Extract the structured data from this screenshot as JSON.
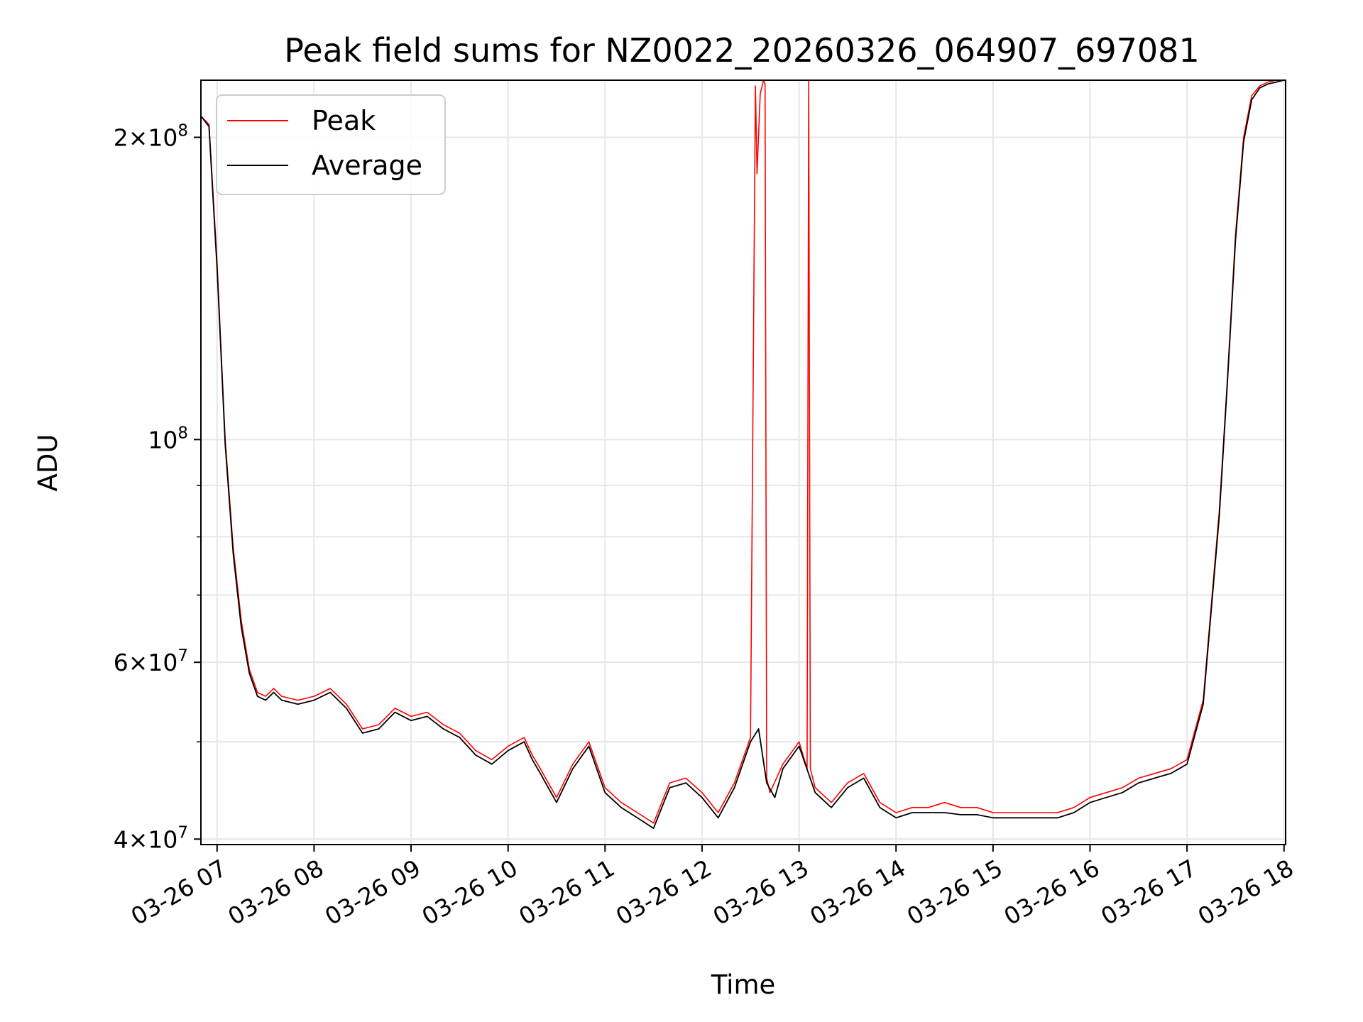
{
  "chart_data": {
    "type": "line",
    "title": "Peak field sums for NZ0022_20260326_064907_697081",
    "xlabel": "Time",
    "ylabel": "ADU",
    "yscale": "log",
    "ylim": [
      39500000,
      228000000
    ],
    "xlim": [
      "03-26 06:50",
      "03-26 18:01"
    ],
    "grid": true,
    "legend_position": "upper-left",
    "x_ticks": [
      "03-26 07",
      "03-26 08",
      "03-26 09",
      "03-26 10",
      "03-26 11",
      "03-26 12",
      "03-26 13",
      "03-26 14",
      "03-26 15",
      "03-26 16",
      "03-26 17",
      "03-26 18"
    ],
    "y_ticks": [
      {
        "value": 40000000,
        "mantissa": "4",
        "exp": "7"
      },
      {
        "value": 60000000,
        "mantissa": "6",
        "exp": "7"
      },
      {
        "value": 100000000,
        "mantissa": "",
        "exp": "8"
      },
      {
        "value": 200000000,
        "mantissa": "2",
        "exp": "8"
      }
    ],
    "y_minor_ticks": [
      50000000,
      70000000,
      80000000,
      90000000
    ],
    "series": [
      {
        "name": "Peak",
        "color": "#ff0000",
        "x": [
          "06:50",
          "06:55",
          "07:00",
          "07:05",
          "07:10",
          "07:15",
          "07:20",
          "07:25",
          "07:30",
          "07:35",
          "07:40",
          "07:50",
          "08:00",
          "08:10",
          "08:20",
          "08:30",
          "08:40",
          "08:50",
          "09:00",
          "09:10",
          "09:20",
          "09:30",
          "09:40",
          "09:50",
          "10:00",
          "10:10",
          "10:15",
          "10:20",
          "10:30",
          "10:40",
          "10:50",
          "11:00",
          "11:10",
          "11:20",
          "11:30",
          "11:40",
          "11:50",
          "12:00",
          "12:10",
          "12:20",
          "12:30",
          "12:33",
          "12:34",
          "12:36",
          "12:38",
          "12:39",
          "12:40",
          "12:42",
          "12:50",
          "13:00",
          "13:05",
          "13:06",
          "13:07",
          "13:10",
          "13:20",
          "13:30",
          "13:40",
          "13:50",
          "14:00",
          "14:10",
          "14:20",
          "14:30",
          "14:40",
          "14:50",
          "15:00",
          "15:10",
          "15:20",
          "15:30",
          "15:40",
          "15:50",
          "16:00",
          "16:10",
          "16:20",
          "16:30",
          "16:40",
          "16:50",
          "17:00",
          "17:10",
          "17:20",
          "17:25",
          "17:30",
          "17:35",
          "17:40",
          "17:45",
          "17:50",
          "17:55",
          "18:00"
        ],
        "y": [
          210000000,
          206000000,
          150000000,
          100000000,
          78000000,
          66000000,
          59000000,
          56000000,
          55500000,
          56500000,
          55500000,
          55000000,
          55500000,
          56500000,
          54500000,
          51500000,
          52000000,
          54000000,
          53000000,
          53500000,
          52000000,
          51000000,
          49000000,
          48000000,
          49500000,
          50500000,
          48500000,
          47000000,
          44000000,
          47500000,
          50000000,
          45000000,
          43500000,
          42500000,
          41500000,
          45500000,
          46000000,
          44500000,
          42500000,
          45500000,
          50500000,
          225000000,
          184000000,
          221000000,
          228000000,
          226000000,
          46000000,
          44500000,
          47500000,
          50000000,
          47000000,
          228000000,
          47000000,
          45000000,
          43500000,
          45500000,
          46500000,
          43500000,
          42500000,
          43000000,
          43000000,
          43500000,
          43000000,
          43000000,
          42500000,
          42500000,
          42500000,
          42500000,
          42500000,
          43000000,
          44000000,
          44500000,
          45000000,
          46000000,
          46500000,
          47000000,
          48000000,
          55000000,
          85000000,
          115000000,
          160000000,
          200000000,
          220000000,
          225000000,
          227000000,
          228000000,
          228000000
        ]
      },
      {
        "name": "Average",
        "color": "#000000",
        "x": [
          "06:50",
          "06:55",
          "07:00",
          "07:05",
          "07:10",
          "07:15",
          "07:20",
          "07:25",
          "07:30",
          "07:35",
          "07:40",
          "07:50",
          "08:00",
          "08:10",
          "08:20",
          "08:30",
          "08:40",
          "08:50",
          "09:00",
          "09:10",
          "09:20",
          "09:30",
          "09:40",
          "09:50",
          "10:00",
          "10:10",
          "10:15",
          "10:20",
          "10:30",
          "10:40",
          "10:50",
          "11:00",
          "11:10",
          "11:20",
          "11:30",
          "11:40",
          "11:50",
          "12:00",
          "12:10",
          "12:20",
          "12:30",
          "12:35",
          "12:40",
          "12:45",
          "12:50",
          "13:00",
          "13:10",
          "13:20",
          "13:30",
          "13:40",
          "13:50",
          "14:00",
          "14:10",
          "14:20",
          "14:30",
          "14:40",
          "14:50",
          "15:00",
          "15:10",
          "15:20",
          "15:30",
          "15:40",
          "15:50",
          "16:00",
          "16:10",
          "16:20",
          "16:30",
          "16:40",
          "16:50",
          "17:00",
          "17:10",
          "17:20",
          "17:25",
          "17:30",
          "17:35",
          "17:40",
          "17:45",
          "17:50",
          "17:55",
          "18:00"
        ],
        "y": [
          210000000,
          205000000,
          148000000,
          99000000,
          77000000,
          65000000,
          58500000,
          55500000,
          55000000,
          56000000,
          55000000,
          54500000,
          55000000,
          56000000,
          54000000,
          51000000,
          51500000,
          53500000,
          52500000,
          53000000,
          51500000,
          50500000,
          48500000,
          47500000,
          49000000,
          50000000,
          48000000,
          46500000,
          43500000,
          47000000,
          49500000,
          44500000,
          43000000,
          42000000,
          41000000,
          45000000,
          45500000,
          44000000,
          42000000,
          45000000,
          50000000,
          51500000,
          45500000,
          44000000,
          47000000,
          49500000,
          44500000,
          43000000,
          45000000,
          46000000,
          43000000,
          42000000,
          42500000,
          42500000,
          42500000,
          42300000,
          42300000,
          42000000,
          42000000,
          42000000,
          42000000,
          42000000,
          42500000,
          43500000,
          44000000,
          44500000,
          45500000,
          46000000,
          46500000,
          47500000,
          54500000,
          84000000,
          114000000,
          158000000,
          198000000,
          218000000,
          224000000,
          226000000,
          227000000,
          228000000
        ]
      }
    ]
  }
}
